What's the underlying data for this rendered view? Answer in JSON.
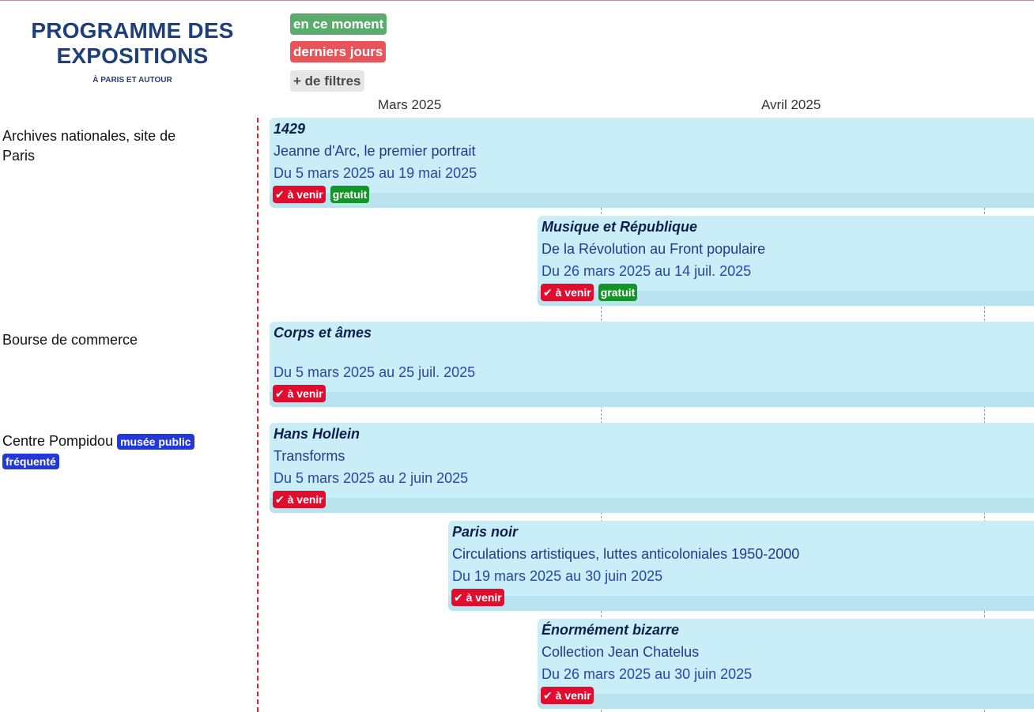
{
  "header": {
    "title": "PROGRAMME DES EXPOSITIONS",
    "subtitle": "À PARIS ET AUTOUR"
  },
  "filters": {
    "now": "en ce moment",
    "last_days": "derniers jours",
    "more": "+ de filtres"
  },
  "months": [
    "Mars 2025",
    "Avril 2025"
  ],
  "venues": [
    {
      "name": "Archives nationales, site de Paris",
      "tags": []
    },
    {
      "name": "Bourse de commerce",
      "tags": []
    },
    {
      "name": "Centre Pompidou",
      "tags": [
        "musée public",
        "fréquenté"
      ]
    }
  ],
  "exhibitions": [
    {
      "title": "1429",
      "subtitle": "Jeanne d'Arc, le premier portrait",
      "dates": "Du 5 mars 2025 au 19 mai 2025",
      "status": "✔ à venir",
      "badge": "gratuit"
    },
    {
      "title": "Musique et République",
      "subtitle": "De la Révolution au Front populaire",
      "dates": "Du 26 mars 2025 au 14 juil. 2025",
      "status": "✔ à venir",
      "badge": "gratuit"
    },
    {
      "title": "Corps et âmes",
      "subtitle": "",
      "dates": "Du 5 mars 2025 au 25 juil. 2025",
      "status": "✔ à venir",
      "badge": ""
    },
    {
      "title": "Hans Hollein",
      "subtitle": "Transforms",
      "dates": "Du 5 mars 2025 au 2 juin 2025",
      "status": "✔ à venir",
      "badge": ""
    },
    {
      "title": "Paris noir",
      "subtitle": "Circulations artistiques, luttes anticoloniales 1950-2000",
      "dates": "Du 19 mars 2025 au 30 juin 2025",
      "status": "✔ à venir",
      "badge": ""
    },
    {
      "title": "Énormément bizarre",
      "subtitle": "Collection Jean Chatelus",
      "dates": "Du 26 mars 2025 au 30 juin 2025",
      "status": "✔ à venir",
      "badge": ""
    }
  ],
  "colors": {
    "title": "#1f3f7a",
    "bar": "#c9eef7",
    "status_red": "#e20c2f",
    "free_green": "#139628",
    "venue_tag_blue": "#2338d9",
    "today_line": "#e3202a"
  }
}
